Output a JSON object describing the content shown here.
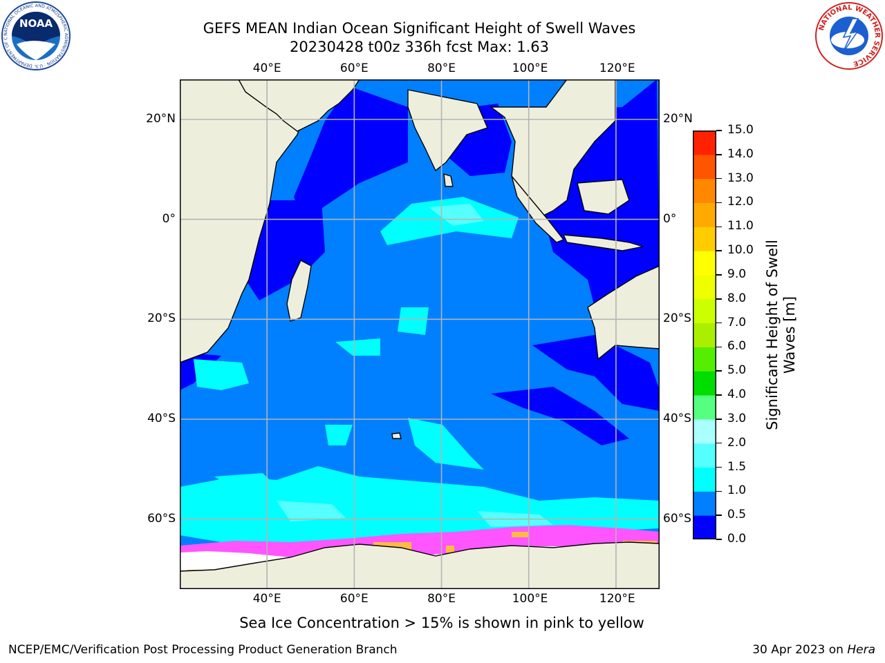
{
  "header": {
    "title_line1": "GEFS MEAN Indian Ocean Significant Height of Swell Waves",
    "title_line2": "20230428 t00z 336h fcst   Max: 1.63"
  },
  "logos": {
    "left": "NOAA",
    "right": "NATIONAL WEATHER SERVICE",
    "left_ring": "NATIONAL OCEANIC AND ATMOSPHERIC ADMINISTRATION · U.S. DEPARTMENT OF COMMERCE"
  },
  "map": {
    "lon_ticks": [
      "40°E",
      "60°E",
      "80°E",
      "100°E",
      "120°E"
    ],
    "lat_ticks": [
      "20°N",
      "0°",
      "20°S",
      "40°S",
      "60°S"
    ],
    "lon_values": [
      40,
      60,
      80,
      100,
      120
    ],
    "lat_values": [
      20,
      0,
      -20,
      -40,
      -60
    ],
    "extent": {
      "lon": [
        20,
        130
      ],
      "lat": [
        -74,
        28
      ]
    },
    "colors": {
      "land": "#eeeedd",
      "band_0_05": "#0000ff",
      "band_05_10": "#0080ff",
      "band_10_15": "#00ffff",
      "band_15_20": "#55ffff",
      "ice_pink": "#ff55ff",
      "ice_white": "#ffffff",
      "ice_yellow": "#ffbb44",
      "grid": "#b4b4b4"
    }
  },
  "colorbar": {
    "label_line1": "Significant Height of Swell",
    "label_line2": "Waves [m]",
    "ticks": [
      "0.0",
      "0.5",
      "1.0",
      "1.5",
      "2.0",
      "3.0",
      "4.0",
      "5.0",
      "6.0",
      "7.0",
      "8.0",
      "9.0",
      "10.0",
      "11.0",
      "12.0",
      "13.0",
      "14.0",
      "15.0"
    ],
    "colors": [
      "#0000ff",
      "#0080ff",
      "#00ffff",
      "#55ffff",
      "#aaffff",
      "#55ff80",
      "#00dd00",
      "#55ee00",
      "#aaee00",
      "#ccff00",
      "#eeff00",
      "#ffff00",
      "#ffcc00",
      "#ffaa00",
      "#ff8800",
      "#ff5500",
      "#ff2200"
    ]
  },
  "caption": "Sea Ice Concentration > 15% is shown in pink to yellow",
  "footer": {
    "left": "NCEP/EMC/Verification Post Processing Product Generation Branch",
    "right_date": "30 Apr 2023 on ",
    "right_machine": "Hera"
  }
}
